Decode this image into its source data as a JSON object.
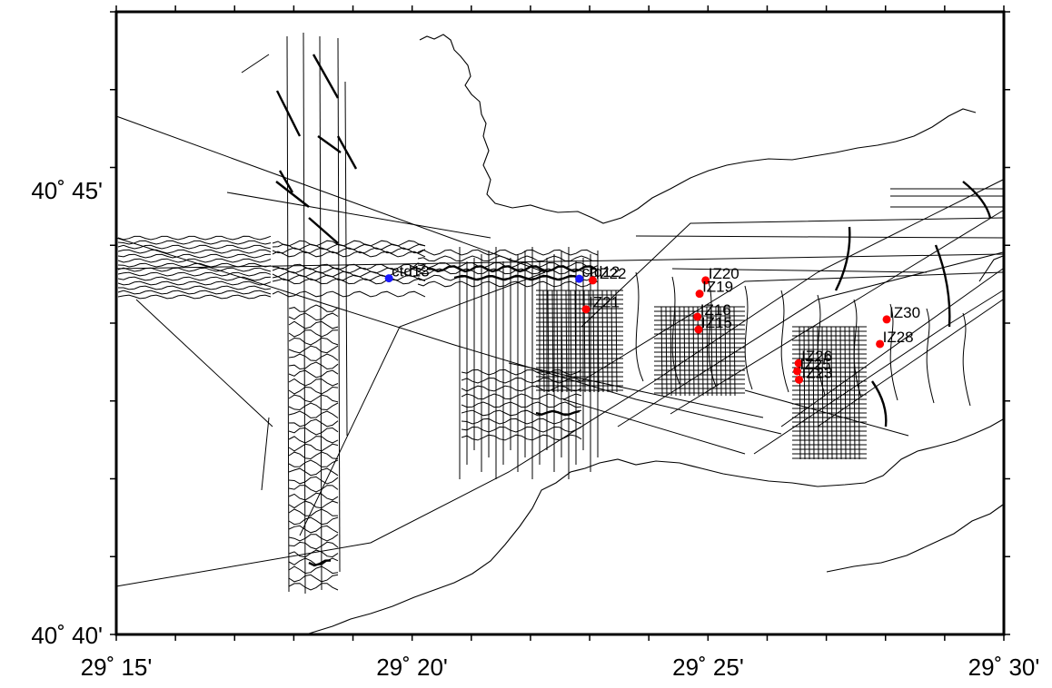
{
  "map": {
    "lon_range": [
      29.25,
      29.5
    ],
    "lat_range": [
      40.6667,
      40.7833
    ],
    "lon_labels": [
      {
        "deg": 29.25,
        "text": "29˚ 15'"
      },
      {
        "deg": 29.3333,
        "text": "29˚ 20'"
      },
      {
        "deg": 29.4167,
        "text": "29˚ 25'"
      },
      {
        "deg": 29.5,
        "text": "29˚ 30'"
      }
    ],
    "lat_labels": [
      {
        "deg": 40.75,
        "text": "40˚ 45'"
      },
      {
        "deg": 40.6667,
        "text": "40˚ 40'"
      }
    ],
    "colors": {
      "frame": "#000000",
      "ctd": "#1a1aff",
      "core": "#ff0000",
      "line": "#000000"
    }
  },
  "stations": [
    {
      "label": "ctd13",
      "type": "ctd",
      "lon": 29.3268,
      "lat": 40.7334
    },
    {
      "label": "ctd12",
      "type": "ctd",
      "lon": 29.3804,
      "lat": 40.7333
    },
    {
      "label": "IZ22",
      "type": "core",
      "lon": 29.3842,
      "lat": 40.733
    },
    {
      "label": "IZ21",
      "type": "core",
      "lon": 29.3823,
      "lat": 40.7276
    },
    {
      "label": "IZ20",
      "type": "core",
      "lon": 29.416,
      "lat": 40.733
    },
    {
      "label": "IZ19",
      "type": "core",
      "lon": 29.4143,
      "lat": 40.7305
    },
    {
      "label": "IZ16",
      "type": "core",
      "lon": 29.4137,
      "lat": 40.7262
    },
    {
      "label": "IZ15",
      "type": "core",
      "lon": 29.414,
      "lat": 40.7238
    },
    {
      "label": "IZ30",
      "type": "core",
      "lon": 29.467,
      "lat": 40.7257
    },
    {
      "label": "IZ28",
      "type": "core",
      "lon": 29.4651,
      "lat": 40.7211
    },
    {
      "label": "IZ26",
      "type": "core",
      "lon": 29.4422,
      "lat": 40.7175
    },
    {
      "label": "IZ25",
      "type": "core",
      "lon": 29.4418,
      "lat": 40.716
    },
    {
      "label": "IZ23",
      "type": "core",
      "lon": 29.4423,
      "lat": 40.7144
    }
  ]
}
